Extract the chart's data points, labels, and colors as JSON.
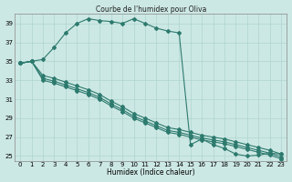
{
  "title": "Courbe de l'humidex pour Oliva",
  "xlabel": "Humidex (Indice chaleur)",
  "bg_color": "#cce8e4",
  "grid_color": "#aed4cf",
  "line_color": "#2d7a6e",
  "xlim": [
    -0.5,
    23.5
  ],
  "ylim": [
    24.5,
    40
  ],
  "yticks": [
    25,
    27,
    29,
    31,
    33,
    35,
    37,
    39
  ],
  "xticks": [
    0,
    1,
    2,
    3,
    4,
    5,
    6,
    7,
    8,
    9,
    10,
    11,
    12,
    13,
    14,
    15,
    16,
    17,
    18,
    19,
    20,
    21,
    22,
    23
  ],
  "series1": {
    "x": [
      0,
      1,
      2,
      3,
      4,
      5,
      6,
      7,
      8,
      9,
      10,
      11,
      12,
      13,
      14,
      15,
      16,
      17,
      18,
      19,
      20,
      21,
      22,
      23
    ],
    "y": [
      34.8,
      35.0,
      35.2,
      36.5,
      38.0,
      39.0,
      39.5,
      39.3,
      39.2,
      39.0,
      39.5,
      39.0,
      38.5,
      38.2,
      38.0,
      26.2,
      26.8,
      26.2,
      25.8,
      25.2,
      25.0,
      25.1,
      25.3,
      25.2
    ]
  },
  "series2": {
    "x": [
      0,
      1,
      2,
      3,
      4,
      5,
      6,
      7,
      8,
      9,
      10,
      11,
      12,
      13,
      14,
      15,
      16,
      17,
      18,
      19,
      20,
      21,
      22,
      23
    ],
    "y": [
      34.8,
      35.0,
      33.5,
      33.2,
      32.8,
      32.4,
      32.0,
      31.5,
      30.8,
      30.2,
      29.5,
      29.0,
      28.5,
      28.0,
      27.8,
      27.5,
      27.2,
      27.0,
      26.8,
      26.5,
      26.2,
      25.9,
      25.6,
      25.2
    ]
  },
  "series3": {
    "x": [
      0,
      1,
      2,
      3,
      4,
      5,
      6,
      7,
      8,
      9,
      10,
      11,
      12,
      13,
      14,
      15,
      16,
      17,
      18,
      19,
      20,
      21,
      22,
      23
    ],
    "y": [
      34.8,
      35.0,
      33.2,
      32.9,
      32.5,
      32.1,
      31.7,
      31.2,
      30.5,
      29.9,
      29.2,
      28.7,
      28.2,
      27.7,
      27.5,
      27.2,
      26.9,
      26.7,
      26.5,
      26.2,
      25.9,
      25.6,
      25.3,
      24.9
    ]
  },
  "series4": {
    "x": [
      0,
      1,
      2,
      3,
      4,
      5,
      6,
      7,
      8,
      9,
      10,
      11,
      12,
      13,
      14,
      15,
      16,
      17,
      18,
      19,
      20,
      21,
      22,
      23
    ],
    "y": [
      34.8,
      35.0,
      33.0,
      32.7,
      32.3,
      31.9,
      31.5,
      31.0,
      30.3,
      29.7,
      29.0,
      28.5,
      28.0,
      27.5,
      27.3,
      27.0,
      26.7,
      26.5,
      26.3,
      26.0,
      25.7,
      25.4,
      25.1,
      24.7
    ]
  }
}
